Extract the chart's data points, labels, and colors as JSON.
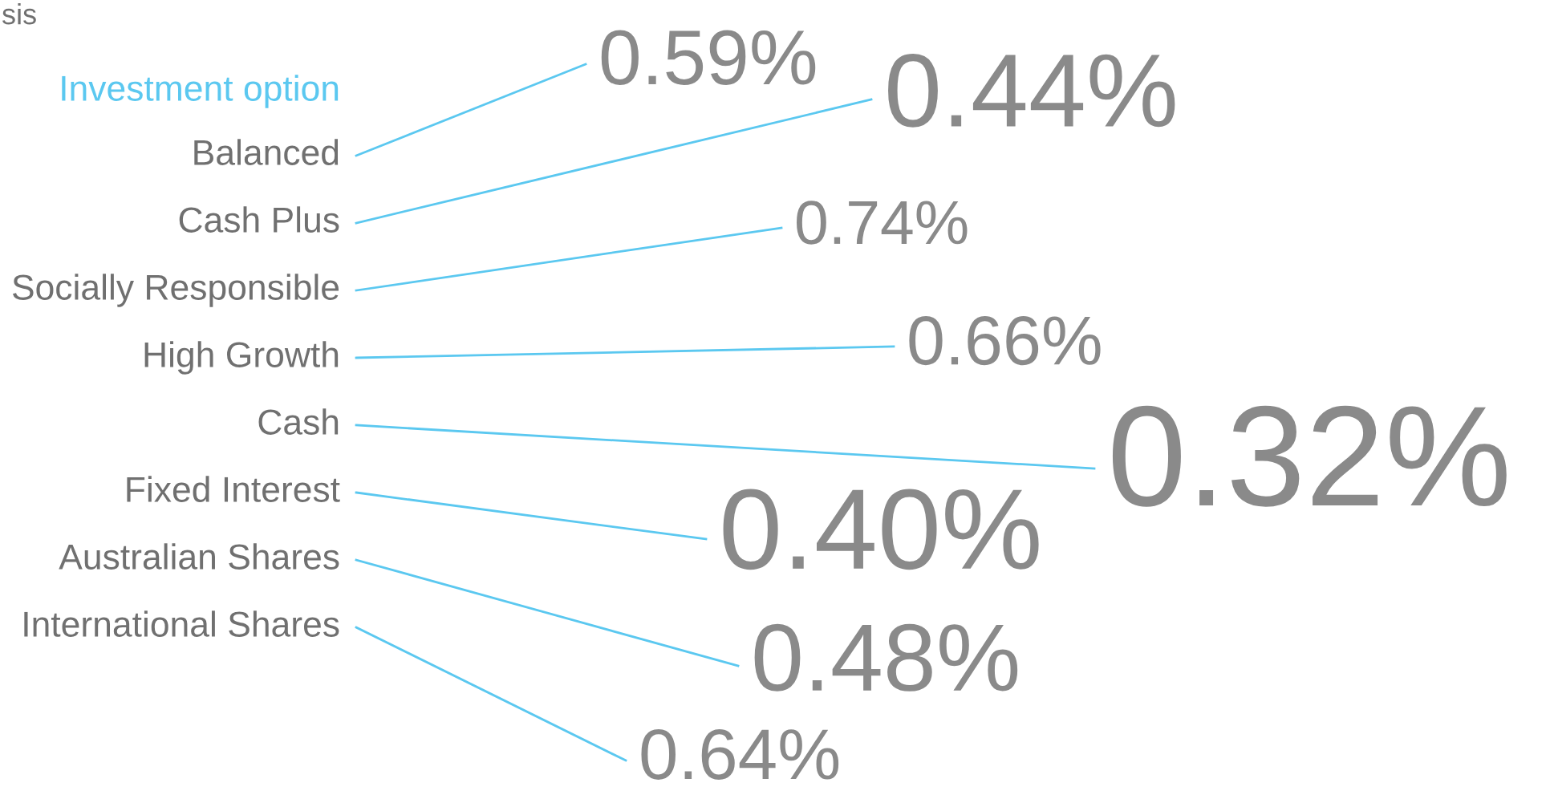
{
  "chart_data": {
    "type": "other",
    "ylabel": "Investment option",
    "annotations": [
      "sis"
    ],
    "categories": [
      "Balanced",
      "Cash Plus",
      "Socially Responsible",
      "High Growth",
      "Cash",
      "Fixed Interest",
      "Australian Shares",
      "International Shares"
    ],
    "values": [
      0.59,
      0.44,
      0.74,
      0.66,
      0.32,
      0.4,
      0.48,
      0.64
    ],
    "value_labels": [
      "0.59%",
      "0.44%",
      "0.74%",
      "0.66%",
      "0.32%",
      "0.40%",
      "0.48%",
      "0.64%"
    ],
    "color": "#5bc8f0"
  }
}
